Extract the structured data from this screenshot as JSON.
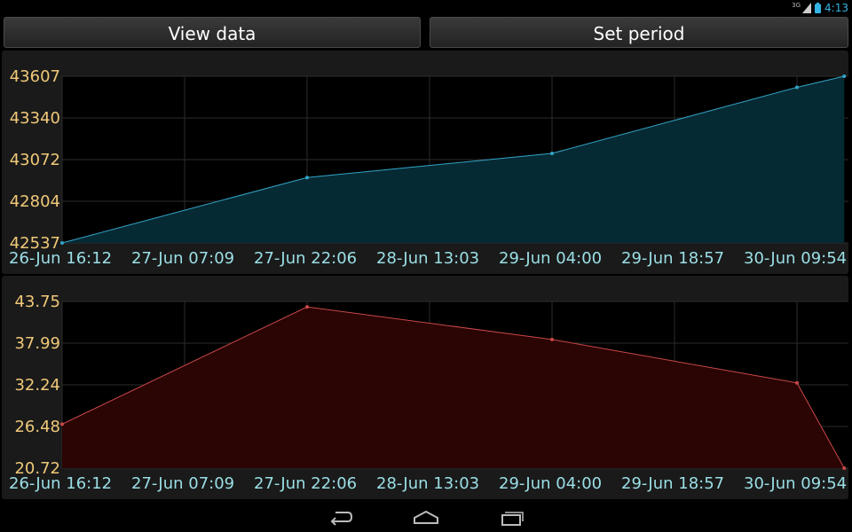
{
  "status": {
    "time": "4:13",
    "network": "3G",
    "icons": [
      "signal-icon",
      "battery-icon"
    ]
  },
  "toolbar": {
    "view_label": "View data",
    "period_label": "Set period"
  },
  "colors": {
    "top_line": "#33a5c8",
    "top_fill": "#062a33",
    "bottom_line": "#c84848",
    "bottom_fill": "#2b0404",
    "ytick": "#f0c979",
    "xtick": "#9bdfe6",
    "grid": "#2c2c2c"
  },
  "chart_data": [
    {
      "type": "area",
      "x": [
        "26-Jun 16:12",
        "27-Jun 22:06",
        "29-Jun 04:00",
        "30-Jun 09:54",
        "30-Jun 15:40"
      ],
      "values": [
        42537,
        42957,
        43112,
        43536,
        43607
      ],
      "x_ticks": [
        "26-Jun 16:12",
        "27-Jun 07:09",
        "27-Jun 22:06",
        "28-Jun 13:03",
        "29-Jun 04:00",
        "29-Jun 18:57",
        "30-Jun 09:54"
      ],
      "y_ticks": [
        "43607",
        "43340",
        "43072",
        "42804",
        "42537"
      ],
      "ylim": [
        42537,
        43607
      ],
      "grid": true
    },
    {
      "type": "area",
      "x": [
        "26-Jun 16:12",
        "27-Jun 22:06",
        "29-Jun 04:00",
        "30-Jun 09:54",
        "30-Jun 15:40"
      ],
      "values": [
        26.8,
        43.0,
        38.5,
        32.5,
        20.72
      ],
      "x_ticks": [
        "26-Jun 16:12",
        "27-Jun 07:09",
        "27-Jun 22:06",
        "28-Jun 13:03",
        "29-Jun 04:00",
        "29-Jun 18:57",
        "30-Jun 09:54"
      ],
      "y_ticks": [
        "43.75",
        "37.99",
        "32.24",
        "26.48",
        "20.72"
      ],
      "ylim": [
        20.72,
        43.75
      ],
      "grid": true
    }
  ]
}
